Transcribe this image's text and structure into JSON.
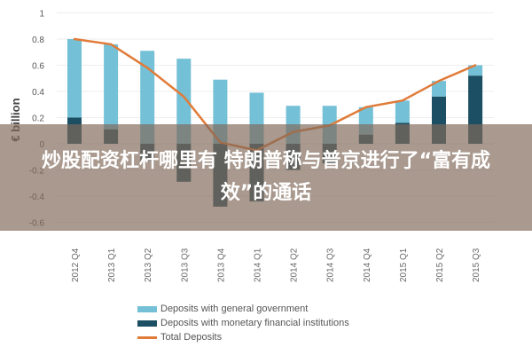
{
  "chart_data": {
    "type": "bar",
    "stacked": true,
    "ylabel": "€ billion",
    "ylim": [
      -0.6,
      1
    ],
    "yticks": [
      "1",
      "0.8",
      "0.6",
      "0.4",
      "0.2",
      "0",
      "-0.2",
      "-0.4",
      "-0.6"
    ],
    "grid": true,
    "legend_position": "bottom",
    "categories": [
      "2012 Q4",
      "2013 Q1",
      "2013 Q2",
      "2013 Q3",
      "2013 Q4",
      "2014 Q1",
      "2014 Q2",
      "2014 Q3",
      "2014 Q4",
      "2015 Q1",
      "2015 Q2",
      "2015 Q3"
    ],
    "series": [
      {
        "name": "Deposits with general government",
        "type": "bar",
        "color": "#74c0d6",
        "values": [
          0.6,
          0.65,
          0.71,
          0.65,
          0.49,
          0.39,
          0.29,
          0.29,
          0.21,
          0.17,
          0.12,
          0.08
        ]
      },
      {
        "name": "Deposits with monetary financial institutions",
        "type": "bar",
        "color": "#1c4f63",
        "values": [
          0.2,
          0.11,
          -0.13,
          -0.29,
          -0.48,
          -0.44,
          -0.2,
          -0.15,
          0.07,
          0.16,
          0.36,
          0.52
        ]
      },
      {
        "name": "Total Deposits",
        "type": "line",
        "color": "#e07b39",
        "values": [
          0.8,
          0.76,
          0.58,
          0.36,
          0.01,
          -0.05,
          0.09,
          0.14,
          0.28,
          0.33,
          0.48,
          0.6
        ]
      }
    ]
  },
  "overlay_text": "炒股配资杠杆哪里有 特朗普称与普京进行了“富有成效”的通话"
}
